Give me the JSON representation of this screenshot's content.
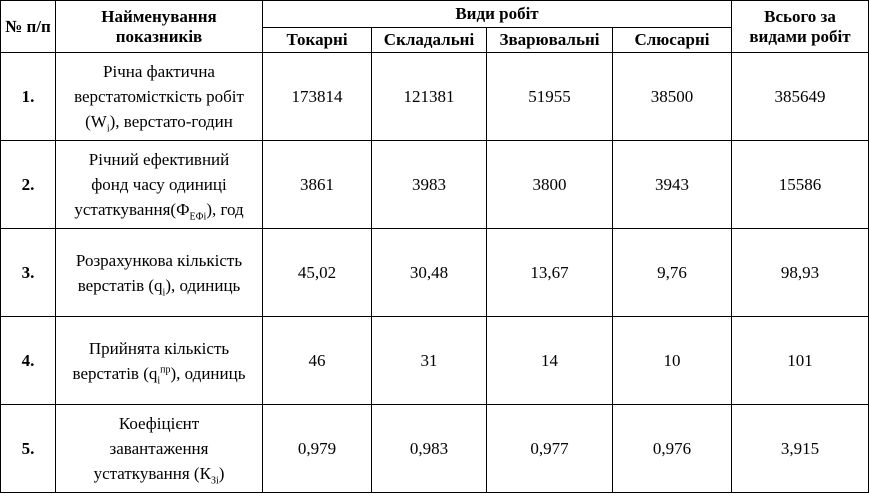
{
  "header": {
    "number": "№ п/п",
    "name": "Найменування показників",
    "group": "Види робіт",
    "columns": [
      "Токарні",
      "Складальні",
      "Зварювальні",
      "Слюсарні"
    ],
    "total": "Всього за видами робіт"
  },
  "rows": [
    {
      "number": "1.",
      "name": [
        "Річна фактична",
        "верстатомісткість робіт",
        "(W",
        "i",
        "), верстато-годин"
      ],
      "values": [
        "173814",
        "121381",
        "51955",
        "38500"
      ],
      "total": "385649"
    },
    {
      "number": "2.",
      "name": [
        "Річний ефективний",
        "фонд часу одиниці",
        "устаткування(Ф",
        "ЕФі",
        "), год"
      ],
      "values": [
        "3861",
        "3983",
        "3800",
        "3943"
      ],
      "total": "15586"
    },
    {
      "number": "3.",
      "name": [
        "Розрахункова кількість",
        "верстатів (q",
        "i",
        "), одиниць"
      ],
      "values": [
        "45,02",
        "30,48",
        "13,67",
        "9,76"
      ],
      "total": "98,93"
    },
    {
      "number": "4.",
      "name": [
        "Прийнята кількість",
        "верстатів (q",
        "i",
        "пр",
        "), одиниць"
      ],
      "values": [
        "46",
        "31",
        "14",
        "10"
      ],
      "total": "101"
    },
    {
      "number": "5.",
      "name": [
        "Коефіцієнт",
        "завантаження",
        "устаткування (К",
        "Зі",
        ")"
      ],
      "values": [
        "0,979",
        "0,983",
        "0,977",
        "0,976"
      ],
      "total": "3,915"
    }
  ]
}
